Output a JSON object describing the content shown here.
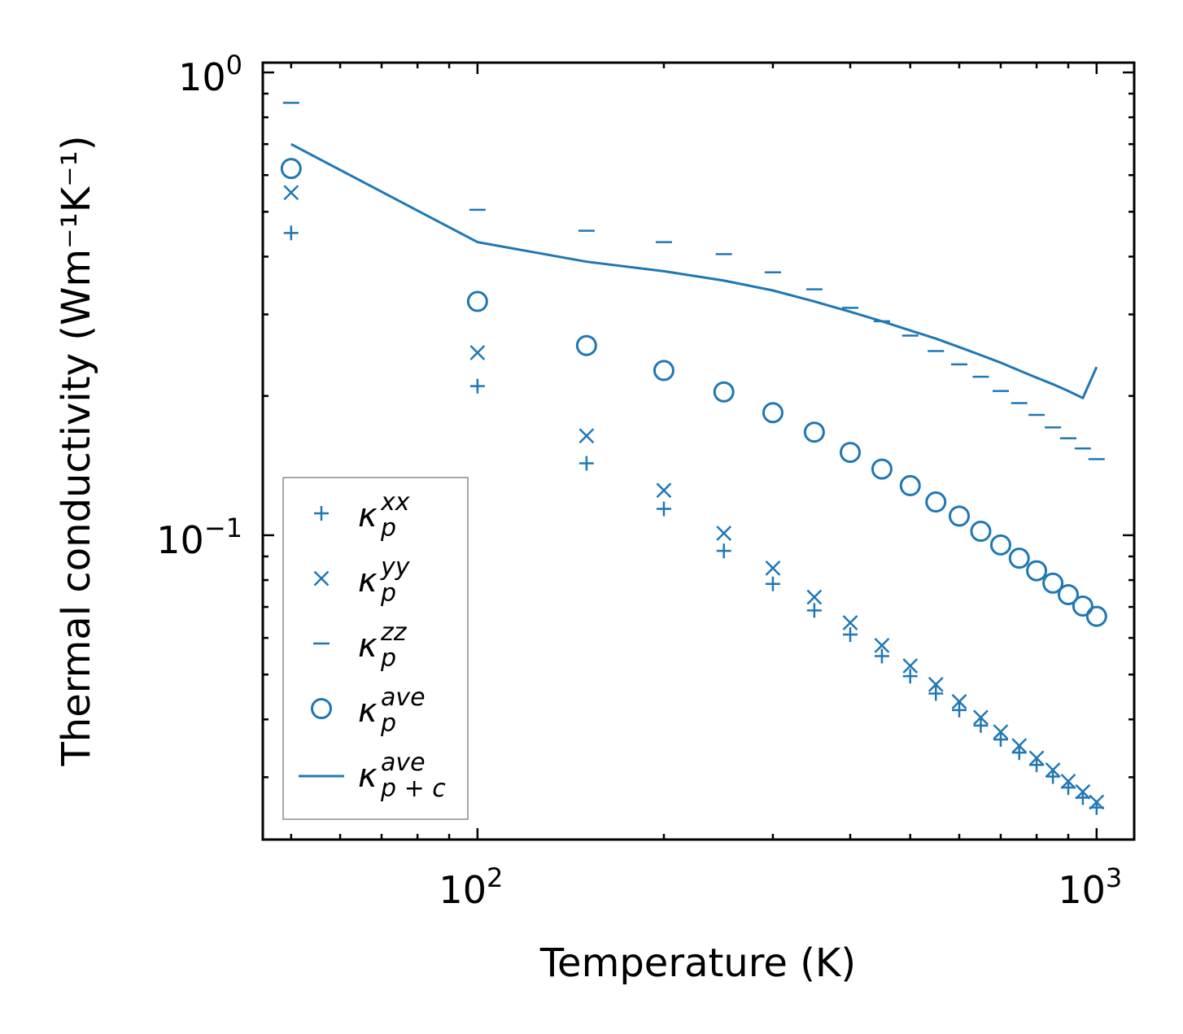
{
  "chart_data": {
    "type": "scatter",
    "xscale": "log",
    "yscale": "log",
    "xlabel": "Temperature (K)",
    "ylabel": "Thermal conductivity (Wm⁻¹K⁻¹)",
    "xlim": [
      45,
      1150
    ],
    "ylim": [
      0.022,
      1.05
    ],
    "xticks": [
      {
        "value": 100,
        "base": "10",
        "exp": "2"
      },
      {
        "value": 1000,
        "base": "10",
        "exp": "3"
      }
    ],
    "yticks": [
      {
        "value": 0.1,
        "base": "10",
        "exp": "−1"
      },
      {
        "value": 1,
        "base": "10",
        "exp": "0"
      }
    ],
    "color": "#1f77b4",
    "x": [
      50,
      100,
      150,
      200,
      250,
      300,
      350,
      400,
      450,
      500,
      550,
      600,
      650,
      700,
      750,
      800,
      850,
      900,
      950,
      1000
    ],
    "series": [
      {
        "name": "kp_xx",
        "label": "κ",
        "sup": "xx",
        "sub": "p",
        "marker": "plus",
        "values": [
          0.45,
          0.21,
          0.143,
          0.114,
          0.0925,
          0.0785,
          0.0688,
          0.061,
          0.0548,
          0.0496,
          0.0455,
          0.0419,
          0.0388,
          0.0362,
          0.0339,
          0.0319,
          0.0301,
          0.0285,
          0.0271,
          0.0258
        ]
      },
      {
        "name": "kp_yy",
        "label": "κ",
        "sup": "yy",
        "sub": "p",
        "marker": "x",
        "values": [
          0.55,
          0.248,
          0.164,
          0.125,
          0.101,
          0.0849,
          0.0735,
          0.0647,
          0.0578,
          0.0522,
          0.0476,
          0.0437,
          0.0404,
          0.0376,
          0.0351,
          0.033,
          0.0311,
          0.0294,
          0.0279,
          0.0265
        ]
      },
      {
        "name": "kp_zz",
        "label": "κ",
        "sup": "zz",
        "sub": "p",
        "marker": "hline",
        "values": [
          0.86,
          0.505,
          0.455,
          0.43,
          0.405,
          0.37,
          0.34,
          0.31,
          0.29,
          0.27,
          0.25,
          0.234,
          0.22,
          0.205,
          0.193,
          0.182,
          0.171,
          0.162,
          0.154,
          0.146
        ]
      },
      {
        "name": "kp_ave",
        "label": "κ",
        "sup": "ave",
        "sub": "p",
        "marker": "circle",
        "values": [
          0.62,
          0.32,
          0.257,
          0.227,
          0.204,
          0.184,
          0.167,
          0.151,
          0.139,
          0.128,
          0.118,
          0.11,
          0.102,
          0.0953,
          0.0892,
          0.0838,
          0.0788,
          0.0744,
          0.0703,
          0.0668
        ]
      },
      {
        "name": "kpc_ave",
        "label": "κ",
        "sup": "ave",
        "sub": "p + c",
        "marker": "line",
        "values": [
          0.7,
          0.43,
          0.39,
          0.372,
          0.355,
          0.338,
          0.32,
          0.304,
          0.29,
          0.277,
          0.266,
          0.255,
          0.245,
          0.236,
          0.227,
          0.219,
          0.212,
          0.205,
          0.198,
          0.231
        ]
      }
    ],
    "legend_position": "lower-left"
  }
}
